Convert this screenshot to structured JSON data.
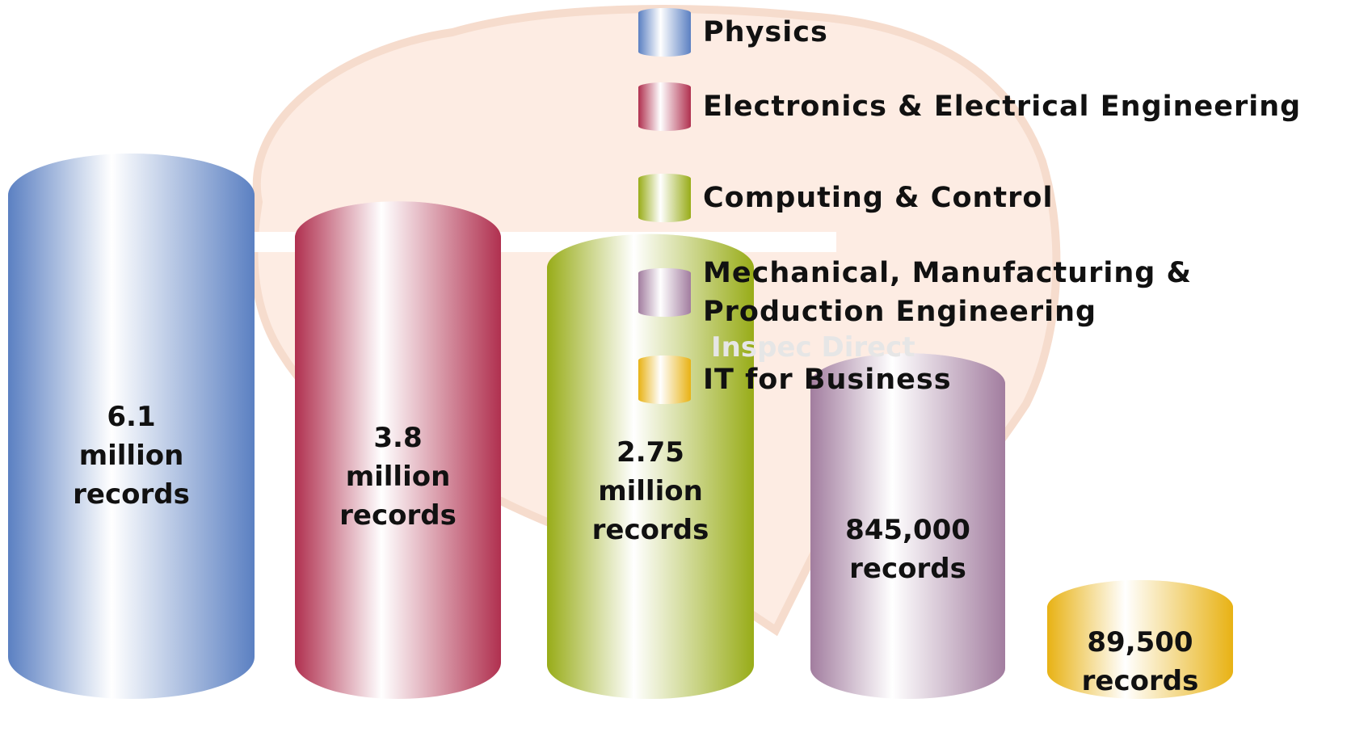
{
  "chart_data": {
    "type": "cylinder",
    "categories": [
      "Physics",
      "Electronics & Electrical Engineering",
      "Computing & Control",
      "Mechanical, Manufacturing & Production Engineering",
      "IT for Business"
    ],
    "values": [
      6100000,
      3800000,
      2750000,
      845000,
      89500
    ],
    "value_labels": [
      "6.1 million records",
      "3.8 million records",
      "2.75 million records",
      "845,000 records",
      "89,500 records"
    ],
    "colors": [
      "#5b80c2",
      "#b0304f",
      "#98ac18",
      "#a27d9f",
      "#e8b214"
    ],
    "log_scale": true
  },
  "watermark": "Inspec Direct"
}
